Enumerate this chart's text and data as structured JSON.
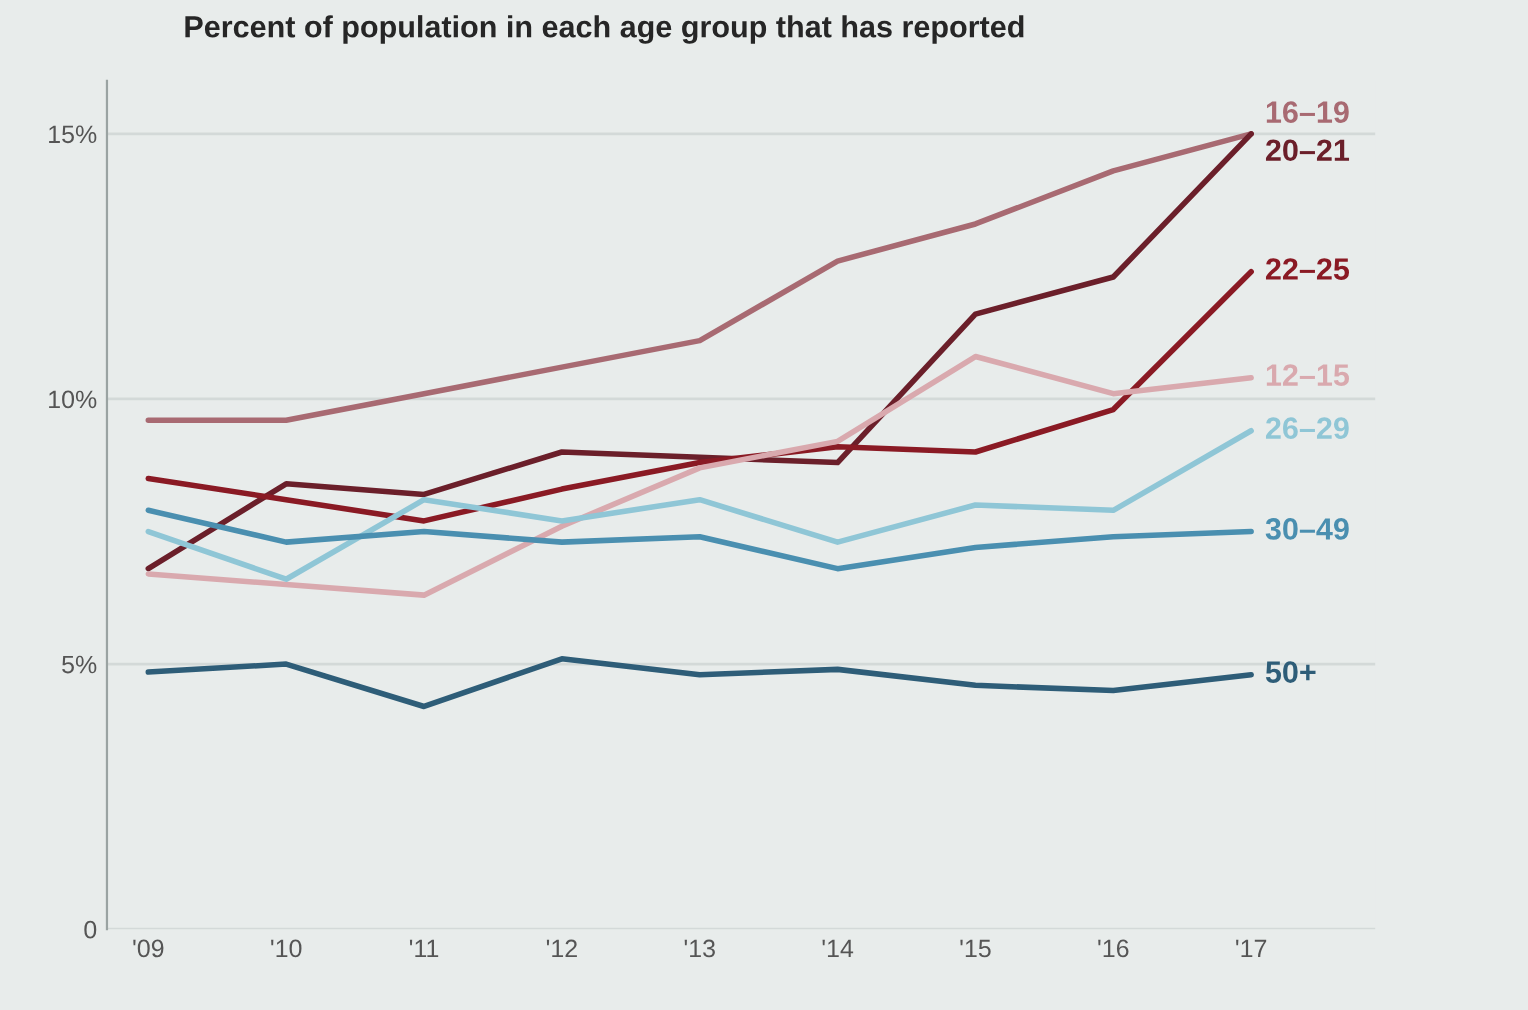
{
  "chart_data": {
    "type": "line",
    "title": "Percent of population in each age group that has reported",
    "categories": [
      "'09",
      "'10",
      "'11",
      "'12",
      "'13",
      "'14",
      "'15",
      "'16",
      "'17"
    ],
    "series": [
      {
        "name": "16–19",
        "color": "#a86a72",
        "values": [
          9.6,
          9.6,
          10.1,
          10.6,
          11.1,
          12.6,
          13.3,
          14.3,
          15.0
        ]
      },
      {
        "name": "20–21",
        "color": "#6b1f2a",
        "values": [
          6.8,
          8.4,
          8.2,
          9.0,
          8.9,
          8.8,
          11.6,
          12.3,
          15.0
        ]
      },
      {
        "name": "22–25",
        "color": "#8a1a24",
        "values": [
          8.5,
          8.1,
          7.7,
          8.3,
          8.8,
          9.1,
          9.0,
          9.8,
          12.4
        ]
      },
      {
        "name": "12–15",
        "color": "#d9a9ae",
        "values": [
          6.7,
          6.5,
          6.3,
          7.6,
          8.7,
          9.2,
          10.8,
          10.1,
          10.4
        ]
      },
      {
        "name": "26–29",
        "color": "#8fc6d6",
        "values": [
          7.5,
          6.6,
          8.1,
          7.7,
          8.1,
          7.3,
          8.0,
          7.9,
          9.4
        ]
      },
      {
        "name": "30–49",
        "color": "#4a8fb0",
        "values": [
          7.9,
          7.3,
          7.5,
          7.3,
          7.4,
          6.8,
          7.2,
          7.4,
          7.5
        ]
      },
      {
        "name": "50+",
        "color": "#2e5d78",
        "values": [
          4.85,
          5.0,
          4.2,
          5.1,
          4.8,
          4.9,
          4.6,
          4.5,
          4.8
        ]
      }
    ],
    "ylim": [
      0,
      16
    ],
    "yticks": [
      0,
      {
        "value": 5,
        "label": "5%"
      },
      {
        "value": 10,
        "label": "10%"
      },
      {
        "value": 15,
        "label": "15%"
      }
    ],
    "grid": "y",
    "legend": false,
    "marker": "none",
    "line_style": "solid"
  }
}
